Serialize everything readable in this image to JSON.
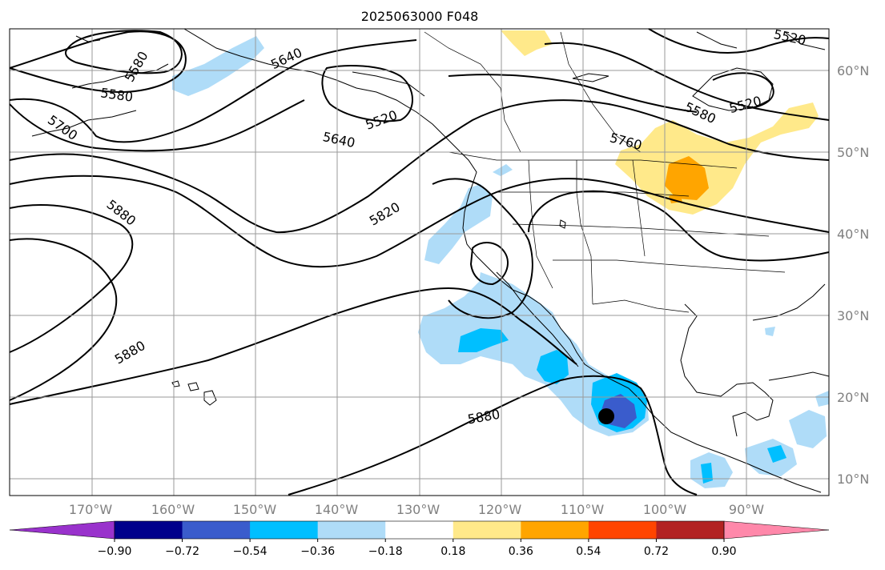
{
  "title": "2025063000 F048",
  "lat_labels": [
    "60°N",
    "50°N",
    "40°N",
    "30°N",
    "20°N",
    "10°N"
  ],
  "lon_labels": [
    "170°W",
    "160°W",
    "150°W",
    "140°W",
    "130°W",
    "120°W",
    "110°W",
    "100°W",
    "90°W"
  ],
  "contour_labels": [
    "5520",
    "5580",
    "5640",
    "5580",
    "5700",
    "5640",
    "5820",
    "5880",
    "5880",
    "5880",
    "5760",
    "5580",
    "5520",
    "5520"
  ],
  "colorbar": {
    "tick_labels": [
      "−0.90",
      "−0.72",
      "−0.54",
      "−0.36",
      "−0.18",
      "0.18",
      "0.36",
      "0.54",
      "0.72",
      "0.90"
    ],
    "colors": [
      "#9932cc",
      "#00008b",
      "#3a5ccc",
      "#00bfff",
      "#afdcf8",
      "#ffffff",
      "#ffe98a",
      "#ffa500",
      "#ff4500",
      "#b22222",
      "#ff88aa"
    ]
  },
  "map_extent": {
    "lon": [
      -180,
      -80
    ],
    "lat": [
      8,
      65
    ]
  },
  "colors": {
    "ocean": "#ffffff",
    "land_outline": "#000000",
    "grid": "#9a9a9a",
    "contour": "#000000"
  }
}
